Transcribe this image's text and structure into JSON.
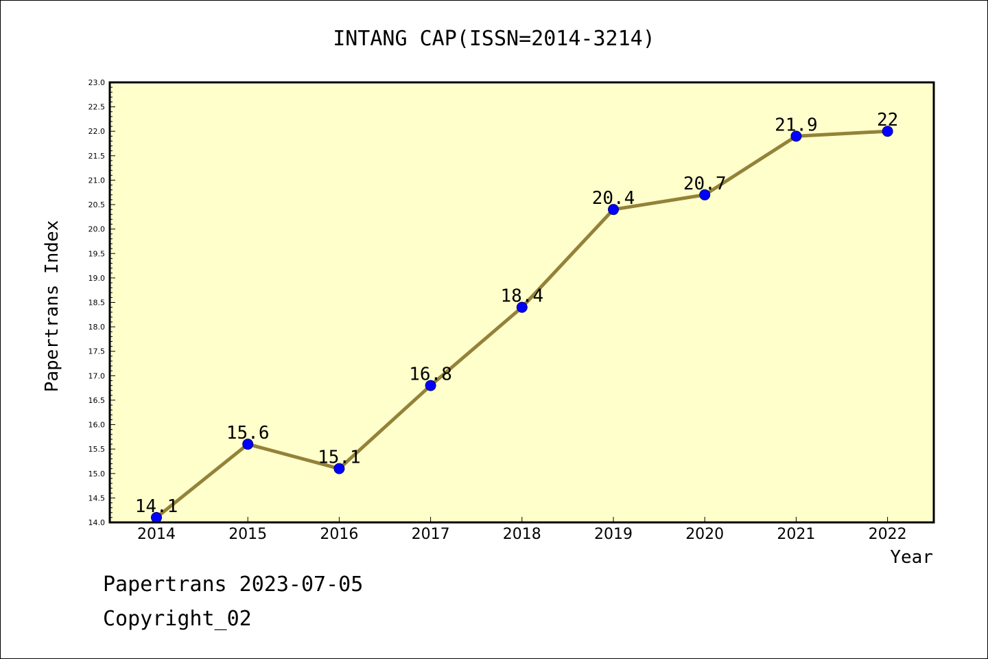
{
  "chart_data": {
    "type": "line",
    "title": "INTANG CAP(ISSN=2014-3214)",
    "xlabel": "Year",
    "ylabel": "Papertrans Index",
    "categories": [
      "2014",
      "2015",
      "2016",
      "2017",
      "2018",
      "2019",
      "2020",
      "2021",
      "2022"
    ],
    "series": [
      {
        "values": [
          14.1,
          15.6,
          15.1,
          16.8,
          18.4,
          20.4,
          20.7,
          21.9,
          22
        ],
        "labels": [
          "14.1",
          "15.6",
          "15.1",
          "16.8",
          "18.4",
          "20.4",
          "20.7",
          "21.9",
          "22"
        ]
      }
    ],
    "ylim": [
      14.0,
      23.0
    ],
    "yticks": [
      "14.0",
      "14.5",
      "15.0",
      "15.5",
      "16.0",
      "16.5",
      "17.0",
      "17.5",
      "18.0",
      "18.5",
      "19.0",
      "19.5",
      "20.0",
      "20.5",
      "21.0",
      "21.5",
      "22.0",
      "22.5",
      "23.0"
    ],
    "grid": false,
    "colors": {
      "line": "#938238",
      "marker": "#0000ff",
      "plot_bg": "#ffffcc"
    }
  },
  "footer": {
    "line1": "Papertrans 2023-07-05",
    "line2": "Copyright_02"
  }
}
